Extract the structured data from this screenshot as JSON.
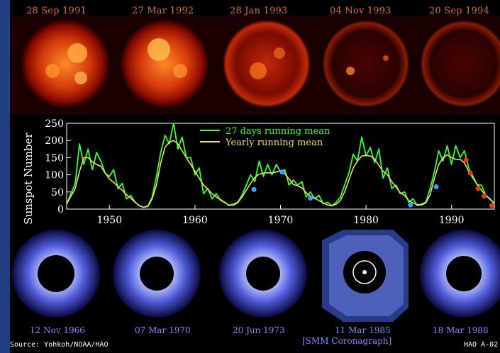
{
  "xray_images": [
    {
      "date": "28 Sep 1991"
    },
    {
      "date": "27 Mar 1992"
    },
    {
      "date": "28 Jan 1993"
    },
    {
      "date": "04 Nov 1993"
    },
    {
      "date": "20 Sep 1994"
    }
  ],
  "coronagraph_images": [
    {
      "date": "12 Nov 1966"
    },
    {
      "date": "07 Mar 1970"
    },
    {
      "date": "20 Jun 1973"
    },
    {
      "date": "11 Mar 1985"
    },
    {
      "date": "18 Mar 1988"
    }
  ],
  "smm_label": "[SMM Coronagraph]",
  "source": "Source: Yohkoh/NOAA/HAO",
  "code": "HAO A-02",
  "colors": {
    "frame": "#1f3f7f",
    "monthly_line": "#33ff33",
    "yearly_line": "#e8e060",
    "xray_marker": "#e03a1a",
    "corona_marker": "#3fa0ff",
    "xray_label": "#e06a3a",
    "corona_label": "#7b8cff"
  },
  "chart_data": {
    "type": "line",
    "ylabel": "Sunspot Number",
    "xlim": [
      1945,
      1995
    ],
    "ylim": [
      0,
      250
    ],
    "xticks": [
      1950,
      1960,
      1970,
      1980,
      1990
    ],
    "yticks": [
      0,
      50,
      100,
      150,
      200,
      250
    ],
    "legend_position": "top-center",
    "series": [
      {
        "name": "27 days running mean",
        "color": "#33ff33",
        "x": [
          1945,
          1946,
          1946.5,
          1947,
          1947.5,
          1948,
          1948.5,
          1949,
          1949.5,
          1950,
          1950.5,
          1951,
          1951.5,
          1952,
          1952.5,
          1953,
          1953.5,
          1954,
          1954.5,
          1955,
          1955.5,
          1956,
          1956.5,
          1957,
          1957.5,
          1958,
          1958.5,
          1959,
          1959.5,
          1960,
          1960.5,
          1961,
          1961.5,
          1962,
          1962.5,
          1963,
          1963.5,
          1964,
          1964.5,
          1965,
          1965.5,
          1966,
          1966.5,
          1967,
          1967.5,
          1968,
          1968.5,
          1969,
          1969.5,
          1970,
          1970.5,
          1971,
          1971.5,
          1972,
          1972.5,
          1973,
          1973.5,
          1974,
          1974.5,
          1975,
          1975.5,
          1976,
          1976.5,
          1977,
          1977.5,
          1978,
          1978.5,
          1979,
          1979.5,
          1980,
          1980.5,
          1981,
          1981.5,
          1982,
          1982.5,
          1983,
          1983.5,
          1984,
          1984.5,
          1985,
          1985.5,
          1986,
          1986.5,
          1987,
          1987.5,
          1988,
          1988.5,
          1989,
          1989.5,
          1990,
          1990.5,
          1991,
          1991.5,
          1992,
          1992.5,
          1993,
          1993.5,
          1994,
          1994.5,
          1995
        ],
        "values": [
          15,
          75,
          190,
          130,
          175,
          115,
          165,
          140,
          105,
          95,
          115,
          60,
          75,
          30,
          40,
          20,
          10,
          5,
          10,
          35,
          95,
          165,
          215,
          190,
          250,
          175,
          210,
          150,
          150,
          100,
          120,
          45,
          60,
          30,
          45,
          25,
          20,
          10,
          15,
          20,
          40,
          70,
          100,
          80,
          140,
          95,
          130,
          100,
          130,
          110,
          115,
          70,
          85,
          70,
          80,
          35,
          50,
          30,
          40,
          15,
          20,
          10,
          20,
          35,
          70,
          105,
          160,
          140,
          210,
          155,
          180,
          135,
          175,
          90,
          120,
          60,
          70,
          45,
          50,
          20,
          30,
          10,
          15,
          20,
          60,
          110,
          170,
          140,
          185,
          130,
          185,
          150,
          170,
          120,
          95,
          70,
          70,
          40,
          30,
          15
        ]
      },
      {
        "name": "Yearly running mean",
        "color": "#e8e060",
        "x": [
          1945,
          1946,
          1946.5,
          1947,
          1947.5,
          1948,
          1948.5,
          1949,
          1949.5,
          1950,
          1950.5,
          1951,
          1951.5,
          1952,
          1952.5,
          1953,
          1953.5,
          1954,
          1954.5,
          1955,
          1955.5,
          1956,
          1956.5,
          1957,
          1957.5,
          1958,
          1958.5,
          1959,
          1959.5,
          1960,
          1960.5,
          1961,
          1961.5,
          1962,
          1962.5,
          1963,
          1963.5,
          1964,
          1964.5,
          1965,
          1965.5,
          1966,
          1966.5,
          1967,
          1967.5,
          1968,
          1968.5,
          1969,
          1969.5,
          1970,
          1970.5,
          1971,
          1971.5,
          1972,
          1972.5,
          1973,
          1973.5,
          1974,
          1974.5,
          1975,
          1975.5,
          1976,
          1976.5,
          1977,
          1977.5,
          1978,
          1978.5,
          1979,
          1979.5,
          1980,
          1980.5,
          1981,
          1981.5,
          1982,
          1982.5,
          1983,
          1983.5,
          1984,
          1984.5,
          1985,
          1985.5,
          1986,
          1986.5,
          1987,
          1987.5,
          1988,
          1988.5,
          1989,
          1989.5,
          1990,
          1990.5,
          1991,
          1991.5,
          1992,
          1992.5,
          1993,
          1993.5,
          1994,
          1994.5,
          1995
        ],
        "values": [
          15,
          60,
          110,
          150,
          150,
          138,
          130,
          125,
          105,
          88,
          78,
          65,
          55,
          42,
          32,
          20,
          10,
          5,
          8,
          30,
          70,
          135,
          180,
          195,
          200,
          190,
          170,
          150,
          130,
          110,
          90,
          70,
          58,
          45,
          35,
          28,
          18,
          12,
          12,
          18,
          35,
          55,
          75,
          92,
          102,
          105,
          106,
          105,
          108,
          112,
          103,
          88,
          72,
          68,
          62,
          48,
          38,
          32,
          25,
          18,
          12,
          10,
          14,
          25,
          50,
          85,
          120,
          140,
          155,
          156,
          155,
          145,
          128,
          110,
          100,
          80,
          65,
          48,
          40,
          25,
          18,
          13,
          12,
          18,
          42,
          90,
          130,
          150,
          158,
          150,
          145,
          145,
          135,
          110,
          90,
          72,
          55,
          40,
          28,
          18
        ]
      }
    ],
    "markers": [
      {
        "x": 1966.9,
        "y": 57,
        "color": "#3fa0ff",
        "kind": "coronagraph"
      },
      {
        "x": 1970.2,
        "y": 108,
        "color": "#3fa0ff",
        "kind": "coronagraph"
      },
      {
        "x": 1973.5,
        "y": 32,
        "color": "#3fa0ff",
        "kind": "coronagraph"
      },
      {
        "x": 1985.2,
        "y": 12,
        "color": "#3fa0ff",
        "kind": "coronagraph"
      },
      {
        "x": 1988.2,
        "y": 65,
        "color": "#3fa0ff",
        "kind": "coronagraph"
      },
      {
        "x": 1991.7,
        "y": 143,
        "color": "#e03a1a",
        "kind": "x-ray"
      },
      {
        "x": 1992.2,
        "y": 105,
        "color": "#e03a1a",
        "kind": "x-ray"
      },
      {
        "x": 1993.1,
        "y": 60,
        "color": "#e03a1a",
        "kind": "x-ray"
      },
      {
        "x": 1993.8,
        "y": 38,
        "color": "#e03a1a",
        "kind": "x-ray"
      },
      {
        "x": 1994.7,
        "y": 10,
        "color": "#e03a1a",
        "kind": "x-ray"
      }
    ]
  }
}
